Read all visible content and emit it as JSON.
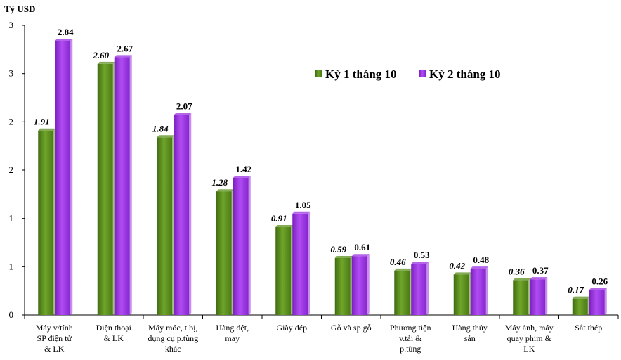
{
  "chart_data": {
    "type": "bar",
    "unit_label": "Tỷ USD",
    "categories": [
      [
        "Máy v/tính",
        "SP điện tử",
        "& LK"
      ],
      [
        "Điện thoại",
        "& LK"
      ],
      [
        "Máy móc, t.bị,",
        "dụng cụ p.tùng",
        "khác"
      ],
      [
        "Hàng dệt,",
        "may"
      ],
      [
        "Giày dép"
      ],
      [
        "Gỗ và sp gỗ"
      ],
      [
        "Phương tiện",
        "v.tải &",
        "p.tùng"
      ],
      [
        "Hàng thủy",
        "sản"
      ],
      [
        "Máy ảnh, máy",
        "quay phim &",
        "LK"
      ],
      [
        "Sắt thép"
      ]
    ],
    "series": [
      {
        "name": "Kỳ 1 tháng 10",
        "color": "#5b8f1d",
        "values": [
          1.91,
          2.6,
          1.84,
          1.28,
          0.91,
          0.59,
          0.46,
          0.42,
          0.36,
          0.17
        ],
        "labels": [
          "1.91",
          "2.60",
          "1.84",
          "1.28",
          "0.91",
          "0.59",
          "0.46",
          "0.42",
          "0.36",
          "0.17"
        ]
      },
      {
        "name": "Kỳ 2 tháng 10",
        "color": "#9b30e0",
        "values": [
          2.84,
          2.67,
          2.07,
          1.42,
          1.05,
          0.61,
          0.53,
          0.48,
          0.37,
          0.26
        ],
        "labels": [
          "2.84",
          "2.67",
          "2.07",
          "1.42",
          "1.05",
          "0.61",
          "0.53",
          "0.48",
          "0.37",
          "0.26"
        ]
      }
    ],
    "ylim": [
      0,
      3
    ],
    "ytick_values": [
      0,
      0.5,
      1,
      1.5,
      2,
      2.5,
      3
    ],
    "ytick_labels": [
      "0",
      "1",
      "1",
      "2",
      "2",
      "3",
      "3"
    ],
    "legend_position": "top-right"
  }
}
